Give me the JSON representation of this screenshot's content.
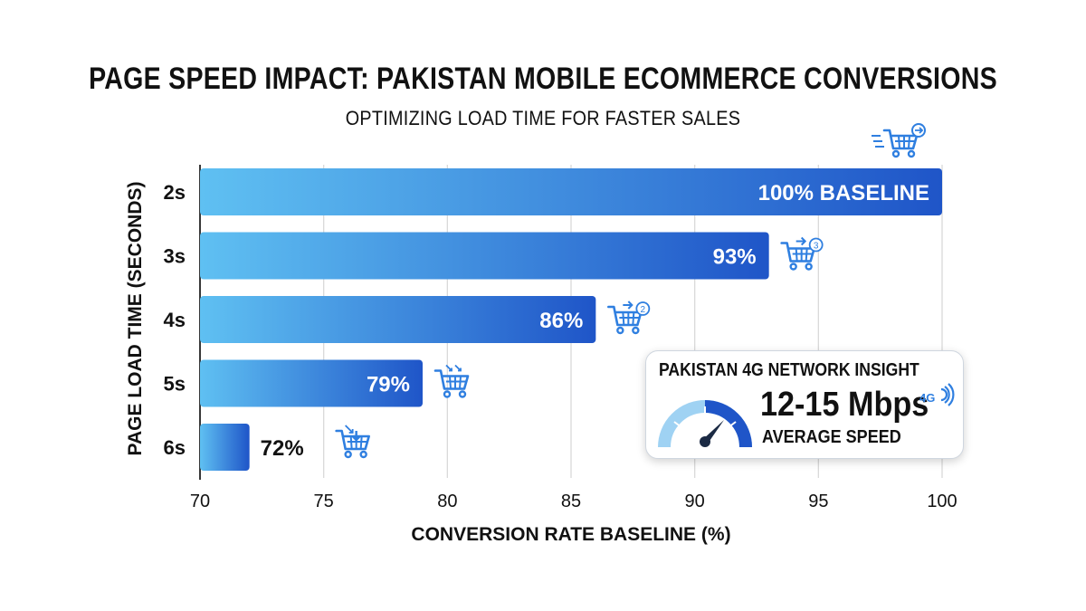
{
  "title": "PAGE SPEED IMPACT: PAKISTAN MOBILE ECOMMERCE CONVERSIONS",
  "subtitle": "OPTIMIZING LOAD TIME FOR FASTER SALES",
  "chart_data": {
    "type": "bar",
    "orientation": "horizontal",
    "categories": [
      "2s",
      "3s",
      "4s",
      "5s",
      "6s"
    ],
    "values": [
      100,
      93,
      86,
      79,
      72
    ],
    "bar_labels": [
      "100% BASELINE",
      "93%",
      "86%",
      "79%",
      "72%"
    ],
    "xlabel": "CONVERSION RATE BASELINE (%)",
    "ylabel": "PAGE LOAD TIME (SECONDS)",
    "xlim": [
      70,
      100
    ],
    "xticks": [
      "70",
      "75",
      "80",
      "85",
      "90",
      "95",
      "100"
    ],
    "grid": true,
    "bar_color_start": "#5fc0f2",
    "bar_color_end": "#1f55c8"
  },
  "icons": [
    "shopping-cart-arrow-icon",
    "shopping-cart-3-icon",
    "shopping-cart-2-icon",
    "shopping-cart-drop-icon",
    "shopping-cart-down-icon"
  ],
  "insight": {
    "title": "PAKISTAN 4G NETWORK INSIGHT",
    "value": "12-15 Mbps",
    "caption": "AVERAGE SPEED",
    "badge": "4G",
    "icons": [
      "speedometer-gauge-icon",
      "4g-signal-icon"
    ]
  }
}
